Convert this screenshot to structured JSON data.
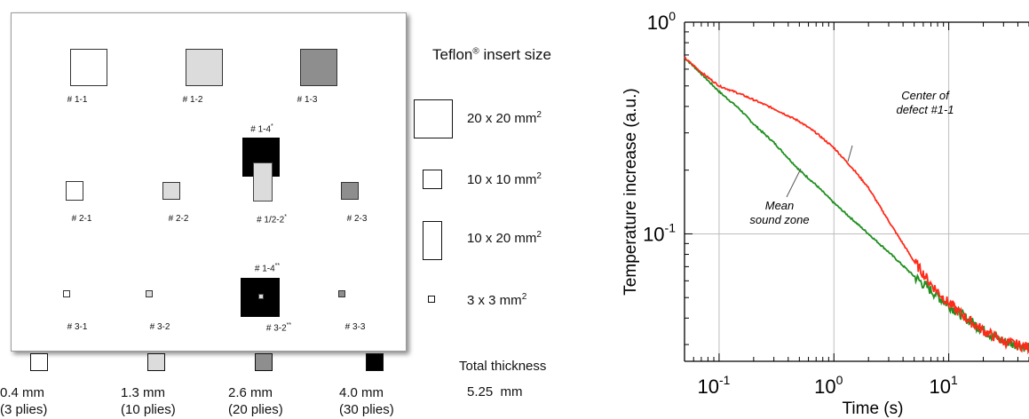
{
  "colors": {
    "ply_0_4": "#ffffff",
    "ply_1_3": "#dcdcdc",
    "ply_2_6": "#8e8e8e",
    "ply_4_0": "#000000",
    "center_curve": "#ff2a1a",
    "sound_curve": "#1f8f1f",
    "grid": "#bdbdbd"
  },
  "specimen": {
    "defects": [
      {
        "label": "# 1-1",
        "color": "ply_0_4"
      },
      {
        "label": "# 1-2",
        "color": "ply_1_3"
      },
      {
        "label": "# 1-3",
        "color": "ply_2_6"
      },
      {
        "label": "# 1-4",
        "sup": "*",
        "color": "ply_4_0"
      },
      {
        "label": "# 2-1",
        "color": "ply_0_4"
      },
      {
        "label": "# 2-2",
        "color": "ply_1_3"
      },
      {
        "label": "# 1/2-2",
        "sup": "*",
        "color": "ply_1_3"
      },
      {
        "label": "# 2-3",
        "color": "ply_2_6"
      },
      {
        "label": "# 1-4",
        "sup": "**",
        "color": "ply_4_0"
      },
      {
        "label": "# 3-1",
        "color": "ply_0_4"
      },
      {
        "label": "# 3-2",
        "color": "ply_1_3"
      },
      {
        "label": "# 3-2",
        "sup": "**",
        "color": "ply_1_3"
      },
      {
        "label": "# 3-3",
        "color": "ply_2_6"
      }
    ]
  },
  "legend": {
    "title": "Teflon",
    "title_reg": "®",
    "title_rest": " insert size",
    "sizes": [
      {
        "text": "20 x 20 mm",
        "sup": "2"
      },
      {
        "text": "10 x 10 mm",
        "sup": "2"
      },
      {
        "text": "10 x 20 mm",
        "sup": "2"
      },
      {
        "text": "3 x 3 mm",
        "sup": "2"
      }
    ]
  },
  "thickness": [
    {
      "depth": "0.4 mm",
      "plies": "(3 plies)",
      "color": "ply_0_4"
    },
    {
      "depth": "1.3 mm",
      "plies": "(10 plies)",
      "color": "ply_1_3"
    },
    {
      "depth": "2.6 mm",
      "plies": "(20 plies)",
      "color": "ply_2_6"
    },
    {
      "depth": "4.0 mm",
      "plies": "(30 plies)",
      "color": "ply_4_0"
    }
  ],
  "total": {
    "label": "Total thickness",
    "value": "5.25  mm"
  },
  "chart_data": {
    "type": "line",
    "xscale": "log",
    "yscale": "log",
    "xlabel": "Time (s)",
    "ylabel": "Temperature increase (a.u.)",
    "xlim": [
      0.05,
      50
    ],
    "ylim": [
      0.025,
      1
    ],
    "xticks": [
      {
        "value": 0.1,
        "base": "10",
        "exp": "-1"
      },
      {
        "value": 1,
        "base": "10",
        "exp": "0"
      },
      {
        "value": 10,
        "base": "10",
        "exp": "1"
      }
    ],
    "yticks": [
      {
        "value": 1,
        "base": "10",
        "exp": "0"
      },
      {
        "value": 0.1,
        "base": "10",
        "exp": "-1"
      }
    ],
    "grid": true,
    "annotations": [
      {
        "lines": [
          "Center of",
          "defect #1-1"
        ],
        "series": 0
      },
      {
        "lines": [
          "Mean",
          "sound zone"
        ],
        "series": 1
      }
    ],
    "series": [
      {
        "name": "Center of defect #1-1",
        "color": "center_curve",
        "x": [
          0.05,
          0.07,
          0.1,
          0.15,
          0.2,
          0.3,
          0.5,
          0.7,
          1.0,
          1.5,
          2.0,
          3.0,
          5.0,
          7.0,
          10,
          15,
          20,
          30,
          50
        ],
        "y": [
          0.68,
          0.58,
          0.5,
          0.46,
          0.43,
          0.39,
          0.34,
          0.3,
          0.255,
          0.2,
          0.165,
          0.115,
          0.074,
          0.058,
          0.047,
          0.039,
          0.035,
          0.031,
          0.029
        ]
      },
      {
        "name": "Mean sound zone",
        "color": "sound_curve",
        "x": [
          0.05,
          0.07,
          0.1,
          0.15,
          0.2,
          0.3,
          0.5,
          0.7,
          1.0,
          1.5,
          2.0,
          3.0,
          5.0,
          7.0,
          10,
          15,
          20,
          30,
          50
        ],
        "y": [
          0.68,
          0.57,
          0.47,
          0.39,
          0.33,
          0.27,
          0.2,
          0.17,
          0.14,
          0.115,
          0.1,
          0.082,
          0.063,
          0.054,
          0.046,
          0.039,
          0.035,
          0.031,
          0.029
        ]
      }
    ]
  }
}
